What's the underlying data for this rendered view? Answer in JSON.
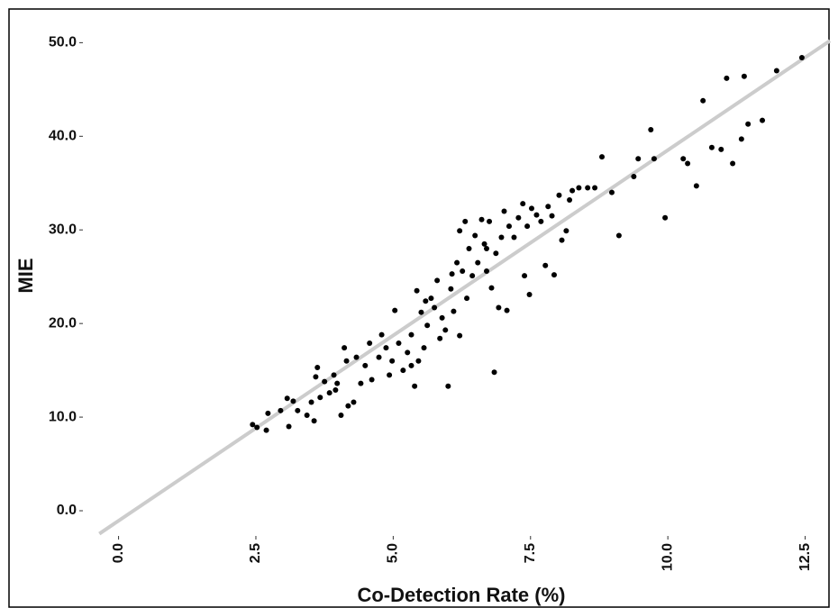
{
  "chart_data": {
    "type": "scatter",
    "x_label": "Co-Detection Rate (%)",
    "y_label": "MIE",
    "color": "#000000",
    "x": [
      2.44,
      2.52,
      2.69,
      2.72,
      2.95,
      3.07,
      3.1,
      3.18,
      3.26,
      3.43,
      3.51,
      3.56,
      3.62,
      3.67,
      3.75,
      3.84,
      3.92,
      3.98,
      4.05,
      4.11,
      4.15,
      4.18,
      4.28,
      4.33,
      4.41,
      4.49,
      4.57,
      4.61,
      4.74,
      4.79,
      4.87,
      4.93,
      4.98,
      5.03,
      5.1,
      5.18,
      5.26,
      5.33,
      5.39,
      5.43,
      5.46,
      5.51,
      5.56,
      5.62,
      5.69,
      5.75,
      5.8,
      5.85,
      5.89,
      5.95,
      6.0,
      6.05,
      6.1,
      6.16,
      6.21,
      6.26,
      6.31,
      6.34,
      6.38,
      6.44,
      6.49,
      6.54,
      6.61,
      6.66,
      6.7,
      6.75,
      6.79,
      6.84,
      6.87,
      6.92,
      6.97,
      7.02,
      7.07,
      7.11,
      7.2,
      7.28,
      7.36,
      7.39,
      7.44,
      7.48,
      7.52,
      7.61,
      7.69,
      7.77,
      7.82,
      7.89,
      7.93,
      8.02,
      8.07,
      8.15,
      8.21,
      8.26,
      8.38,
      8.54,
      8.67,
      8.8,
      8.98,
      9.11,
      9.38,
      9.46,
      9.69,
      9.75,
      9.95,
      10.28,
      10.36,
      10.52,
      10.64,
      10.8,
      10.97,
      11.07,
      11.18,
      11.34,
      11.39,
      11.46,
      11.72,
      11.98,
      12.44,
      3.59,
      3.95,
      5.33,
      5.59,
      6.07,
      6.21,
      6.7
    ],
    "y": [
      9.2,
      8.9,
      8.6,
      10.4,
      10.7,
      12.0,
      9.0,
      11.7,
      10.7,
      10.2,
      11.6,
      9.6,
      15.3,
      12.1,
      13.8,
      12.6,
      14.5,
      13.6,
      10.2,
      17.4,
      16.0,
      11.2,
      11.6,
      16.4,
      13.6,
      15.5,
      17.9,
      14.0,
      16.4,
      18.8,
      17.4,
      14.5,
      16.0,
      21.4,
      17.9,
      15.0,
      16.9,
      18.8,
      13.3,
      23.5,
      16.0,
      21.2,
      17.4,
      19.8,
      22.7,
      21.7,
      24.6,
      18.4,
      20.6,
      19.3,
      13.3,
      23.7,
      21.3,
      26.5,
      18.7,
      25.6,
      30.9,
      22.7,
      28.0,
      25.1,
      29.4,
      26.5,
      31.1,
      28.5,
      25.6,
      30.9,
      23.8,
      14.8,
      27.5,
      21.7,
      29.2,
      32.0,
      21.4,
      30.4,
      29.2,
      31.3,
      32.8,
      25.1,
      30.4,
      23.1,
      32.3,
      31.6,
      30.9,
      26.2,
      32.5,
      31.5,
      25.2,
      33.7,
      28.9,
      29.9,
      33.2,
      34.2,
      34.5,
      34.5,
      34.5,
      37.8,
      34.0,
      29.4,
      35.7,
      37.6,
      40.7,
      37.6,
      31.3,
      37.6,
      37.1,
      34.7,
      43.8,
      38.8,
      38.6,
      46.2,
      37.1,
      39.7,
      46.4,
      41.3,
      41.7,
      47.0,
      48.4,
      14.3,
      12.9,
      15.5,
      22.4,
      25.3,
      29.9,
      28.0
    ],
    "fit_line": {
      "x": [
        -0.35,
        12.95
      ],
      "y": [
        -2.46,
        50.2
      ],
      "color": "#cccccc"
    },
    "xlim": [
      -0.6,
      12.95
    ],
    "ylim": [
      -2.5,
      53.5
    ],
    "xticks": [
      {
        "value": 0,
        "label": "0.0"
      },
      2.5,
      {
        "value": 5,
        "label": "5.0"
      },
      7.5,
      {
        "value": 10,
        "label": "10.0"
      },
      12.5
    ],
    "yticks": [
      {
        "value": 0,
        "label": "0.0"
      },
      {
        "value": 10,
        "label": "10.0"
      },
      {
        "value": 20,
        "label": "20.0"
      },
      {
        "value": 30,
        "label": "30.0"
      },
      {
        "value": 40,
        "label": "40.0"
      },
      {
        "value": 50,
        "label": "50.0"
      }
    ],
    "grid": false
  }
}
